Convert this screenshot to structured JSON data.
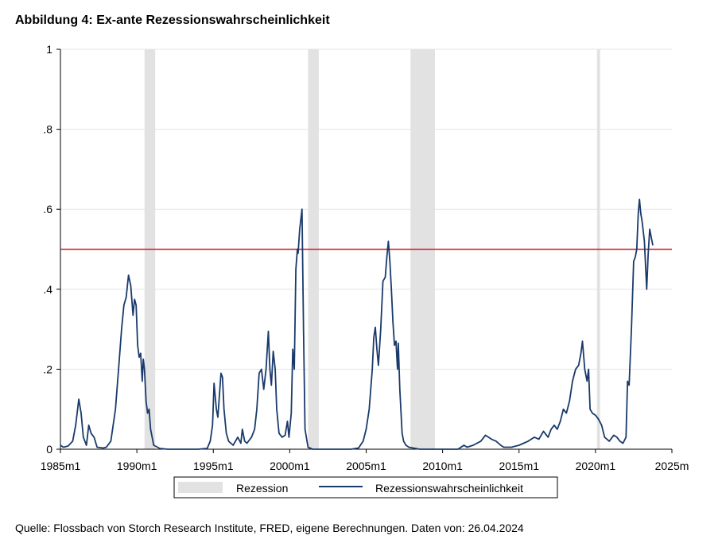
{
  "header": {
    "title": "Abbildung 4: Ex-ante Rezessionswahrscheinlichkeit"
  },
  "footer": {
    "source": "Quelle: Flossbach von Storch Research Institute, FRED, eigene Berechnungen. Daten von: 26.04.2024"
  },
  "chart_data": {
    "type": "line",
    "title": "Abbildung 4: Ex-ante Rezessionswahrscheinlichkeit",
    "xlabel": "",
    "ylabel": "",
    "xlim": [
      1985.0,
      2025.0
    ],
    "ylim": [
      0,
      1
    ],
    "x_tick_labels": [
      "1985m1",
      "1990m1",
      "1995m1",
      "2000m1",
      "2005m1",
      "2010m1",
      "2015m1",
      "2020m1",
      "2025m"
    ],
    "x_tick_values": [
      1985,
      1990,
      1995,
      2000,
      2005,
      2010,
      2015,
      2020,
      2025
    ],
    "y_tick_labels": [
      "0",
      ".2",
      ".4",
      ".6",
      ".8",
      "1"
    ],
    "y_tick_values": [
      0,
      0.2,
      0.4,
      0.6,
      0.8,
      1.0
    ],
    "grid": true,
    "legend_position": "bottom",
    "legend": [
      "Rezession",
      "Rezessionswahrscheinlichkeit"
    ],
    "threshold": {
      "value": 0.5,
      "color": "#c8202f"
    },
    "recessions": [
      {
        "start": 1990.5,
        "end": 1991.2
      },
      {
        "start": 2001.2,
        "end": 2001.9
      },
      {
        "start": 2007.9,
        "end": 2009.5
      },
      {
        "start": 2020.1,
        "end": 2020.3
      }
    ],
    "series": [
      {
        "name": "Rezessionswahrscheinlichkeit",
        "color": "#1a3a6b",
        "points": [
          [
            1985.0,
            0.01
          ],
          [
            1985.2,
            0.005
          ],
          [
            1985.5,
            0.008
          ],
          [
            1985.8,
            0.02
          ],
          [
            1986.0,
            0.06
          ],
          [
            1986.2,
            0.125
          ],
          [
            1986.35,
            0.09
          ],
          [
            1986.5,
            0.03
          ],
          [
            1986.7,
            0.01
          ],
          [
            1986.85,
            0.06
          ],
          [
            1987.0,
            0.04
          ],
          [
            1987.2,
            0.03
          ],
          [
            1987.4,
            0.005
          ],
          [
            1987.8,
            0.003
          ],
          [
            1988.0,
            0.005
          ],
          [
            1988.3,
            0.02
          ],
          [
            1988.6,
            0.1
          ],
          [
            1988.8,
            0.2
          ],
          [
            1989.0,
            0.3
          ],
          [
            1989.15,
            0.36
          ],
          [
            1989.3,
            0.38
          ],
          [
            1989.45,
            0.435
          ],
          [
            1989.6,
            0.41
          ],
          [
            1989.75,
            0.335
          ],
          [
            1989.85,
            0.375
          ],
          [
            1989.95,
            0.36
          ],
          [
            1990.05,
            0.26
          ],
          [
            1990.15,
            0.23
          ],
          [
            1990.25,
            0.24
          ],
          [
            1990.35,
            0.17
          ],
          [
            1990.42,
            0.225
          ],
          [
            1990.5,
            0.2
          ],
          [
            1990.6,
            0.12
          ],
          [
            1990.7,
            0.09
          ],
          [
            1990.8,
            0.1
          ],
          [
            1990.9,
            0.05
          ],
          [
            1991.1,
            0.01
          ],
          [
            1991.5,
            0.002
          ],
          [
            1992.0,
            0.0
          ],
          [
            1993.0,
            0.0
          ],
          [
            1994.0,
            0.0
          ],
          [
            1994.6,
            0.002
          ],
          [
            1994.8,
            0.02
          ],
          [
            1994.95,
            0.06
          ],
          [
            1995.05,
            0.165
          ],
          [
            1995.2,
            0.1
          ],
          [
            1995.3,
            0.08
          ],
          [
            1995.5,
            0.19
          ],
          [
            1995.6,
            0.18
          ],
          [
            1995.7,
            0.1
          ],
          [
            1995.85,
            0.04
          ],
          [
            1996.0,
            0.02
          ],
          [
            1996.3,
            0.01
          ],
          [
            1996.6,
            0.03
          ],
          [
            1996.8,
            0.015
          ],
          [
            1996.9,
            0.05
          ],
          [
            1997.05,
            0.02
          ],
          [
            1997.2,
            0.015
          ],
          [
            1997.5,
            0.03
          ],
          [
            1997.7,
            0.05
          ],
          [
            1997.85,
            0.1
          ],
          [
            1998.0,
            0.19
          ],
          [
            1998.15,
            0.2
          ],
          [
            1998.3,
            0.15
          ],
          [
            1998.45,
            0.2
          ],
          [
            1998.6,
            0.295
          ],
          [
            1998.7,
            0.2
          ],
          [
            1998.8,
            0.16
          ],
          [
            1998.92,
            0.245
          ],
          [
            1999.05,
            0.2
          ],
          [
            1999.15,
            0.1
          ],
          [
            1999.3,
            0.04
          ],
          [
            1999.5,
            0.03
          ],
          [
            1999.7,
            0.035
          ],
          [
            1999.85,
            0.07
          ],
          [
            1999.95,
            0.03
          ],
          [
            2000.1,
            0.09
          ],
          [
            2000.2,
            0.25
          ],
          [
            2000.3,
            0.2
          ],
          [
            2000.4,
            0.45
          ],
          [
            2000.5,
            0.5
          ],
          [
            2000.55,
            0.49
          ],
          [
            2000.65,
            0.55
          ],
          [
            2000.8,
            0.6
          ],
          [
            2000.9,
            0.3
          ],
          [
            2001.0,
            0.05
          ],
          [
            2001.2,
            0.005
          ],
          [
            2001.5,
            0.0
          ],
          [
            2002.0,
            0.0
          ],
          [
            2003.0,
            0.0
          ],
          [
            2004.0,
            0.0
          ],
          [
            2004.5,
            0.003
          ],
          [
            2004.8,
            0.02
          ],
          [
            2005.0,
            0.05
          ],
          [
            2005.2,
            0.1
          ],
          [
            2005.4,
            0.2
          ],
          [
            2005.5,
            0.28
          ],
          [
            2005.6,
            0.305
          ],
          [
            2005.7,
            0.25
          ],
          [
            2005.8,
            0.21
          ],
          [
            2005.95,
            0.3
          ],
          [
            2006.1,
            0.42
          ],
          [
            2006.25,
            0.43
          ],
          [
            2006.35,
            0.48
          ],
          [
            2006.45,
            0.52
          ],
          [
            2006.55,
            0.47
          ],
          [
            2006.65,
            0.4
          ],
          [
            2006.75,
            0.32
          ],
          [
            2006.85,
            0.26
          ],
          [
            2006.95,
            0.27
          ],
          [
            2007.05,
            0.2
          ],
          [
            2007.1,
            0.265
          ],
          [
            2007.2,
            0.15
          ],
          [
            2007.35,
            0.04
          ],
          [
            2007.45,
            0.02
          ],
          [
            2007.6,
            0.01
          ],
          [
            2007.8,
            0.005
          ],
          [
            2008.5,
            0.0
          ],
          [
            2010.0,
            0.0
          ],
          [
            2011.0,
            0.0
          ],
          [
            2011.4,
            0.01
          ],
          [
            2011.6,
            0.005
          ],
          [
            2012.0,
            0.01
          ],
          [
            2012.5,
            0.02
          ],
          [
            2012.8,
            0.035
          ],
          [
            2013.0,
            0.03
          ],
          [
            2013.2,
            0.025
          ],
          [
            2013.5,
            0.02
          ],
          [
            2013.8,
            0.01
          ],
          [
            2014.0,
            0.005
          ],
          [
            2014.5,
            0.005
          ],
          [
            2015.0,
            0.01
          ],
          [
            2015.3,
            0.015
          ],
          [
            2015.6,
            0.02
          ],
          [
            2016.0,
            0.03
          ],
          [
            2016.3,
            0.025
          ],
          [
            2016.6,
            0.045
          ],
          [
            2016.9,
            0.03
          ],
          [
            2017.1,
            0.05
          ],
          [
            2017.3,
            0.06
          ],
          [
            2017.5,
            0.05
          ],
          [
            2017.7,
            0.07
          ],
          [
            2017.9,
            0.1
          ],
          [
            2018.1,
            0.09
          ],
          [
            2018.3,
            0.12
          ],
          [
            2018.5,
            0.17
          ],
          [
            2018.7,
            0.2
          ],
          [
            2018.9,
            0.21
          ],
          [
            2019.05,
            0.24
          ],
          [
            2019.15,
            0.27
          ],
          [
            2019.3,
            0.2
          ],
          [
            2019.45,
            0.17
          ],
          [
            2019.55,
            0.2
          ],
          [
            2019.65,
            0.1
          ],
          [
            2019.8,
            0.09
          ],
          [
            2020.0,
            0.085
          ],
          [
            2020.2,
            0.075
          ],
          [
            2020.4,
            0.06
          ],
          [
            2020.6,
            0.03
          ],
          [
            2020.9,
            0.02
          ],
          [
            2021.2,
            0.035
          ],
          [
            2021.4,
            0.03
          ],
          [
            2021.6,
            0.02
          ],
          [
            2021.8,
            0.015
          ],
          [
            2022.0,
            0.03
          ],
          [
            2022.1,
            0.17
          ],
          [
            2022.2,
            0.16
          ],
          [
            2022.35,
            0.3
          ],
          [
            2022.5,
            0.47
          ],
          [
            2022.6,
            0.48
          ],
          [
            2022.7,
            0.5
          ],
          [
            2022.8,
            0.59
          ],
          [
            2022.88,
            0.625
          ],
          [
            2022.96,
            0.59
          ],
          [
            2023.05,
            0.57
          ],
          [
            2023.2,
            0.52
          ],
          [
            2023.35,
            0.4
          ],
          [
            2023.45,
            0.49
          ],
          [
            2023.55,
            0.55
          ],
          [
            2023.65,
            0.53
          ],
          [
            2023.75,
            0.51
          ]
        ]
      }
    ]
  }
}
